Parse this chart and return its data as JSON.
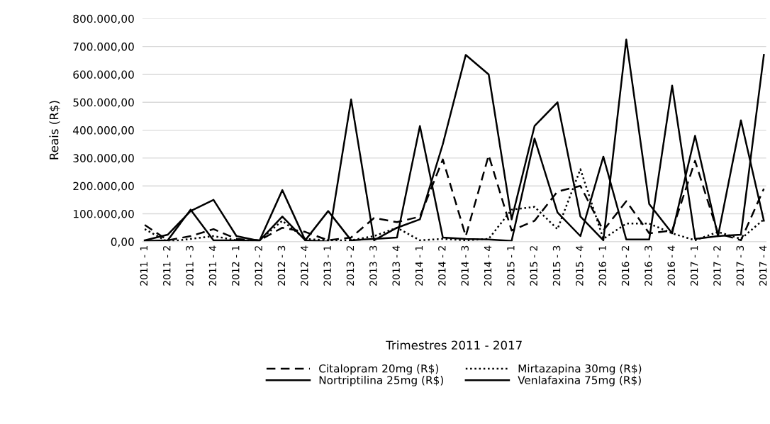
{
  "chart_data": {
    "type": "line",
    "xlabel": "Trimestres 2011 - 2017",
    "ylabel": "Reais (R$)",
    "categories": [
      "2011 - 1",
      "2011 - 2",
      "2011 - 3",
      "2011 - 4",
      "2012 - 1",
      "2012 - 2",
      "2012 - 3",
      "2012 - 4",
      "2013 - 1",
      "2013 - 2",
      "2013 - 3",
      "2013 - 4",
      "2014 - 1",
      "2014 - 2",
      "2014 - 3",
      "2014 - 4",
      "2015 - 1",
      "2015 - 2",
      "2015 - 3",
      "2015 - 4",
      "2016 - 1",
      "2016 - 2",
      "2016 - 3",
      "2016 - 4",
      "2017 - 1",
      "2017 - 2",
      "2017 - 3",
      "2017 - 4"
    ],
    "series": [
      {
        "name": "Citalopram 20mg (R$)",
        "color": "#000000",
        "line_style": "dashed",
        "values": [
          60000,
          5000,
          20000,
          45000,
          10000,
          5000,
          50000,
          35000,
          5000,
          15000,
          85000,
          70000,
          90000,
          295000,
          20000,
          310000,
          40000,
          75000,
          180000,
          200000,
          40000,
          145000,
          30000,
          40000,
          290000,
          30000,
          5000,
          190000
        ]
      },
      {
        "name": "Mirtazapina 30mg (R$)",
        "color": "#000000",
        "line_style": "dotted",
        "values": [
          45000,
          0,
          10000,
          20000,
          5000,
          5000,
          75000,
          10000,
          5000,
          5000,
          20000,
          50000,
          5000,
          10000,
          5000,
          10000,
          115000,
          125000,
          45000,
          260000,
          10000,
          65000,
          65000,
          30000,
          5000,
          35000,
          10000,
          80000
        ]
      },
      {
        "name": "Nortriptilina 25mg (R$)",
        "color": "#000000",
        "line_style": "solid",
        "values": [
          5000,
          25000,
          110000,
          150000,
          20000,
          3000,
          185000,
          5000,
          0,
          510000,
          5000,
          50000,
          80000,
          350000,
          670000,
          600000,
          80000,
          415000,
          500000,
          90000,
          5000,
          725000,
          135000,
          30000,
          380000,
          20000,
          435000,
          75000
        ]
      },
      {
        "name": "Venlafaxina 75mg (R$)",
        "color": "#000000",
        "line_style": "solid",
        "values": [
          3000,
          5000,
          115000,
          5000,
          5000,
          3000,
          90000,
          5000,
          110000,
          5000,
          10000,
          15000,
          415000,
          15000,
          10000,
          8000,
          3000,
          370000,
          105000,
          20000,
          305000,
          8000,
          8000,
          560000,
          10000,
          20000,
          25000,
          670000
        ]
      }
    ],
    "ylim": [
      0,
      800000
    ],
    "yticks": [
      {
        "value": 0,
        "label": "0,00"
      },
      {
        "value": 100000,
        "label": "100.000,00"
      },
      {
        "value": 200000,
        "label": "200.000,00"
      },
      {
        "value": 300000,
        "label": "300.000,00"
      },
      {
        "value": 400000,
        "label": "400.000,00"
      },
      {
        "value": 500000,
        "label": "500.000,00"
      },
      {
        "value": 600000,
        "label": "600.000,00"
      },
      {
        "value": 700000,
        "label": "700.000,00"
      },
      {
        "value": 800000,
        "label": "800.000,00"
      }
    ],
    "grid": "y",
    "legend": "bottom",
    "marker": "none"
  }
}
